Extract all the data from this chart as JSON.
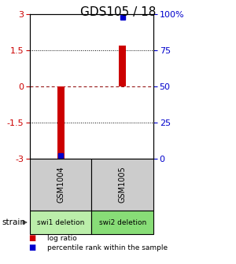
{
  "title": "GDS105 / 18",
  "samples": [
    "GSM1004",
    "GSM1005"
  ],
  "log_ratios": [
    -3.0,
    1.7
  ],
  "percentile_ranks": [
    2.0,
    98.0
  ],
  "ylim_left": [
    -3,
    3
  ],
  "ylim_right": [
    0,
    100
  ],
  "left_ticks": [
    -3,
    -1.5,
    0,
    1.5,
    3
  ],
  "right_ticks": [
    0,
    25,
    50,
    75,
    100
  ],
  "right_tick_labels": [
    "0",
    "25",
    "50",
    "75",
    "100%"
  ],
  "hlines_dotted": [
    -1.5,
    1.5
  ],
  "hlines_dashed": [
    0
  ],
  "strain_labels": [
    "swi1 deletion",
    "swi2 deletion"
  ],
  "bar_color": "#cc0000",
  "marker_color": "#0000cc",
  "left_tick_color": "#cc0000",
  "right_tick_color": "#0000cc",
  "sample_bg_color": "#cccccc",
  "strain_bg_color_1": "#bbeeaa",
  "strain_bg_color_2": "#88dd77",
  "legend_items": [
    {
      "color": "#cc0000",
      "label": "log ratio"
    },
    {
      "color": "#0000cc",
      "label": "percentile rank within the sample"
    }
  ],
  "fig_width": 3.0,
  "fig_height": 3.36,
  "dpi": 100
}
